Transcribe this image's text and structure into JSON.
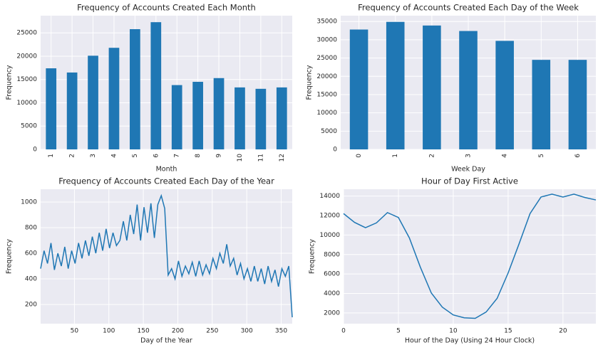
{
  "chart_data": [
    {
      "type": "bar",
      "title": "Frequency of Accounts Created Each Month",
      "xlabel": "Month",
      "ylabel": "Frequency",
      "categories": [
        "1",
        "2",
        "3",
        "4",
        "5",
        "6",
        "7",
        "8",
        "9",
        "10",
        "11",
        "12"
      ],
      "values": [
        17400,
        16500,
        20100,
        21800,
        25800,
        27300,
        13800,
        14500,
        15300,
        13300,
        13000,
        13300
      ],
      "color": "#1f77b4",
      "ylim": [
        0,
        28700
      ],
      "yticks": [
        0,
        5000,
        10000,
        15000,
        20000,
        25000
      ],
      "grid": true
    },
    {
      "type": "bar",
      "title": "Frequency of Accounts Created Each Day of the Week",
      "xlabel": "Week Day",
      "ylabel": "Frequency",
      "categories": [
        "0",
        "1",
        "2",
        "3",
        "4",
        "5",
        "6"
      ],
      "values": [
        32800,
        34900,
        33900,
        32400,
        29700,
        24500,
        24500
      ],
      "color": "#1f77b4",
      "ylim": [
        0,
        36600
      ],
      "yticks": [
        0,
        5000,
        10000,
        15000,
        20000,
        25000,
        30000,
        35000
      ],
      "grid": true
    },
    {
      "type": "line",
      "title": "Frequency of Accounts Created Each Day of the Year",
      "xlabel": "Day of the Year",
      "ylabel": "Frequency",
      "x": [
        1,
        6,
        11,
        16,
        21,
        26,
        31,
        36,
        41,
        46,
        51,
        56,
        61,
        66,
        71,
        76,
        81,
        86,
        91,
        96,
        101,
        106,
        111,
        116,
        121,
        126,
        131,
        136,
        141,
        146,
        151,
        156,
        161,
        166,
        171,
        176,
        181,
        186,
        191,
        196,
        201,
        206,
        211,
        216,
        221,
        226,
        231,
        236,
        241,
        246,
        251,
        256,
        261,
        266,
        271,
        276,
        281,
        286,
        291,
        296,
        301,
        306,
        311,
        316,
        321,
        326,
        331,
        336,
        341,
        346,
        351,
        356,
        361,
        366
      ],
      "values": [
        480,
        620,
        520,
        680,
        470,
        600,
        500,
        650,
        480,
        620,
        520,
        680,
        560,
        700,
        580,
        730,
        600,
        760,
        620,
        790,
        640,
        760,
        660,
        700,
        850,
        700,
        900,
        750,
        980,
        700,
        960,
        760,
        990,
        720,
        980,
        1050,
        950,
        430,
        480,
        400,
        540,
        420,
        500,
        440,
        530,
        420,
        540,
        430,
        510,
        440,
        560,
        480,
        600,
        520,
        670,
        500,
        560,
        430,
        520,
        400,
        480,
        380,
        500,
        380,
        480,
        360,
        500,
        380,
        470,
        340,
        480,
        420,
        500,
        100
      ],
      "color": "#1f77b4",
      "xlim": [
        1,
        366
      ],
      "ylim": [
        50,
        1100
      ],
      "xticks": [
        50,
        100,
        150,
        200,
        250,
        300,
        350
      ],
      "yticks": [
        200,
        400,
        600,
        800,
        1000
      ],
      "grid": true
    },
    {
      "type": "line",
      "title": "Hour of Day First Active",
      "xlabel": "Hour of the Day (Using 24 Hour Clock)",
      "ylabel": "Frequency",
      "x": [
        0,
        1,
        2,
        3,
        4,
        5,
        6,
        7,
        8,
        9,
        10,
        11,
        12,
        13,
        14,
        15,
        16,
        17,
        18,
        19,
        20,
        21,
        22,
        23
      ],
      "values": [
        12200,
        11300,
        10750,
        11250,
        12300,
        11800,
        9700,
        6700,
        4050,
        2600,
        1800,
        1500,
        1450,
        2100,
        3500,
        6100,
        9100,
        12200,
        13900,
        14200,
        13900,
        14200,
        13850,
        13600
      ],
      "color": "#1f77b4",
      "xlim": [
        0,
        23
      ],
      "ylim": [
        900,
        14700
      ],
      "xticks": [
        0,
        5,
        10,
        15,
        20
      ],
      "yticks": [
        2000,
        4000,
        6000,
        8000,
        10000,
        12000,
        14000
      ],
      "grid": true
    }
  ]
}
